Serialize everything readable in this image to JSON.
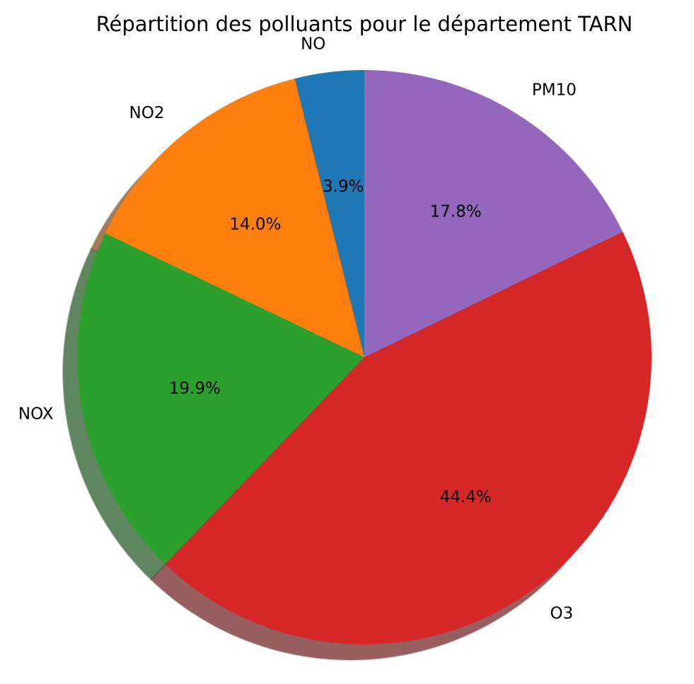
{
  "chart_data": {
    "type": "pie",
    "title": "Répartition des polluants pour le département TARN",
    "categories": [
      "NO",
      "NO2",
      "NOX",
      "O3",
      "PM10"
    ],
    "values": [
      3.9,
      14.0,
      19.9,
      44.4,
      17.8
    ],
    "value_labels": [
      "3.9%",
      "14.0%",
      "19.9%",
      "44.4%",
      "17.8%"
    ],
    "colors": [
      "#1f77b4",
      "#ff7f0e",
      "#2ca02c",
      "#d62728",
      "#9467bd"
    ],
    "start_angle_deg": 90,
    "direction": "counterclockwise",
    "shadow": true,
    "legend": "none"
  }
}
